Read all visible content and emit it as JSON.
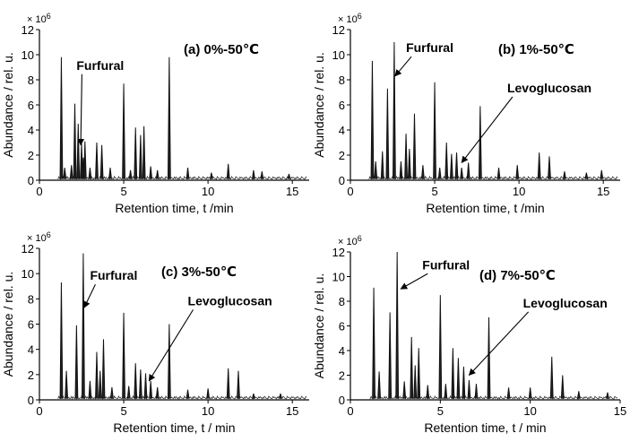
{
  "chart_data": [
    {
      "type": "line",
      "panel_label": "(a) 0%-50℃",
      "ylabel": "Abundance / rel. u.",
      "xlabel": "Retention time, t /min",
      "y_multiplier": "× 10",
      "y_multiplier_exp": "6",
      "xlim": [
        0,
        16
      ],
      "ylim": [
        0,
        12
      ],
      "x_ticks": [
        0,
        5,
        10,
        15
      ],
      "y_ticks": [
        0,
        2,
        4,
        6,
        8,
        10,
        12
      ],
      "peaks": [
        {
          "x": 1.3,
          "y": 9.8
        },
        {
          "x": 1.5,
          "y": 1.0
        },
        {
          "x": 1.9,
          "y": 1.2
        },
        {
          "x": 2.1,
          "y": 6.1
        },
        {
          "x": 2.3,
          "y": 4.5
        },
        {
          "x": 2.5,
          "y": 2.9
        },
        {
          "x": 2.6,
          "y": 1.8
        },
        {
          "x": 2.7,
          "y": 3.1
        },
        {
          "x": 3.0,
          "y": 1.0
        },
        {
          "x": 3.4,
          "y": 3.0
        },
        {
          "x": 3.7,
          "y": 2.8
        },
        {
          "x": 4.2,
          "y": 1.0
        },
        {
          "x": 5.0,
          "y": 7.7
        },
        {
          "x": 5.4,
          "y": 0.8
        },
        {
          "x": 5.7,
          "y": 4.2
        },
        {
          "x": 6.0,
          "y": 3.6
        },
        {
          "x": 6.2,
          "y": 4.3
        },
        {
          "x": 6.6,
          "y": 1.1
        },
        {
          "x": 7.0,
          "y": 0.8
        },
        {
          "x": 7.7,
          "y": 9.8
        },
        {
          "x": 8.8,
          "y": 1.0
        },
        {
          "x": 10.2,
          "y": 0.6
        },
        {
          "x": 11.2,
          "y": 1.3
        },
        {
          "x": 12.7,
          "y": 0.8
        },
        {
          "x": 13.2,
          "y": 0.7
        },
        {
          "x": 14.8,
          "y": 0.5
        }
      ],
      "annotations": [
        {
          "text": "Furfural",
          "x": 2.2,
          "y": 8.8,
          "arrow_to": [
            2.45,
            2.8
          ]
        }
      ]
    },
    {
      "type": "line",
      "panel_label": "(b) 1%-50℃",
      "ylabel": "Abundance / rel. u.",
      "xlabel": "Retention time, t /min",
      "y_multiplier": "× 10",
      "y_multiplier_exp": "6",
      "xlim": [
        0,
        16
      ],
      "ylim": [
        0,
        12
      ],
      "x_ticks": [
        0,
        5,
        10,
        15
      ],
      "y_ticks": [
        0,
        2,
        4,
        6,
        8,
        10,
        12
      ],
      "peaks": [
        {
          "x": 1.3,
          "y": 9.5
        },
        {
          "x": 1.5,
          "y": 1.5
        },
        {
          "x": 1.9,
          "y": 2.3
        },
        {
          "x": 2.2,
          "y": 7.3
        },
        {
          "x": 2.6,
          "y": 11.0
        },
        {
          "x": 3.0,
          "y": 1.5
        },
        {
          "x": 3.3,
          "y": 3.7
        },
        {
          "x": 3.5,
          "y": 2.5
        },
        {
          "x": 3.8,
          "y": 5.3
        },
        {
          "x": 4.3,
          "y": 1.2
        },
        {
          "x": 5.0,
          "y": 7.8
        },
        {
          "x": 5.3,
          "y": 1.0
        },
        {
          "x": 5.7,
          "y": 3.0
        },
        {
          "x": 6.0,
          "y": 2.1
        },
        {
          "x": 6.3,
          "y": 2.2
        },
        {
          "x": 6.6,
          "y": 1.0
        },
        {
          "x": 7.0,
          "y": 1.4
        },
        {
          "x": 7.7,
          "y": 5.9
        },
        {
          "x": 8.8,
          "y": 1.0
        },
        {
          "x": 9.9,
          "y": 1.2
        },
        {
          "x": 11.2,
          "y": 2.2
        },
        {
          "x": 11.8,
          "y": 1.9
        },
        {
          "x": 12.7,
          "y": 0.7
        },
        {
          "x": 14.0,
          "y": 0.6
        },
        {
          "x": 14.9,
          "y": 0.8
        }
      ],
      "annotations": [
        {
          "text": "Furfural",
          "x": 3.3,
          "y": 10.2,
          "arrow_to": [
            2.65,
            8.3
          ]
        },
        {
          "text": "Levoglucosan",
          "x": 9.3,
          "y": 7.0,
          "arrow_to": [
            6.6,
            1.4
          ]
        }
      ]
    },
    {
      "type": "line",
      "panel_label": "(c) 3%-50℃",
      "ylabel": "Abundance / rel. u.",
      "xlabel": "Retention time, t / min",
      "y_multiplier": "× 10",
      "y_multiplier_exp": "6",
      "xlim": [
        0,
        16
      ],
      "ylim": [
        0,
        12
      ],
      "x_ticks": [
        0,
        5,
        10,
        15
      ],
      "y_ticks": [
        0,
        2,
        4,
        6,
        8,
        10,
        12
      ],
      "peaks": [
        {
          "x": 1.3,
          "y": 9.3
        },
        {
          "x": 1.6,
          "y": 2.3
        },
        {
          "x": 2.2,
          "y": 5.9
        },
        {
          "x": 2.6,
          "y": 11.6
        },
        {
          "x": 3.0,
          "y": 1.5
        },
        {
          "x": 3.4,
          "y": 3.8
        },
        {
          "x": 3.6,
          "y": 2.3
        },
        {
          "x": 3.8,
          "y": 4.8
        },
        {
          "x": 4.3,
          "y": 1.0
        },
        {
          "x": 5.0,
          "y": 6.9
        },
        {
          "x": 5.3,
          "y": 1.1
        },
        {
          "x": 5.7,
          "y": 2.9
        },
        {
          "x": 6.0,
          "y": 2.4
        },
        {
          "x": 6.3,
          "y": 2.1
        },
        {
          "x": 6.6,
          "y": 1.5
        },
        {
          "x": 7.0,
          "y": 1.0
        },
        {
          "x": 7.7,
          "y": 6.0
        },
        {
          "x": 8.8,
          "y": 0.8
        },
        {
          "x": 10.0,
          "y": 0.9
        },
        {
          "x": 11.2,
          "y": 2.5
        },
        {
          "x": 11.8,
          "y": 2.3
        },
        {
          "x": 12.7,
          "y": 0.5
        },
        {
          "x": 14.3,
          "y": 0.5
        }
      ],
      "annotations": [
        {
          "text": "Furfural",
          "x": 3.0,
          "y": 9.5,
          "arrow_to": [
            2.65,
            7.3
          ]
        },
        {
          "text": "Levoglucosan",
          "x": 8.8,
          "y": 7.5,
          "arrow_to": [
            6.5,
            1.5
          ]
        }
      ]
    },
    {
      "type": "line",
      "panel_label": "(d) 7%-50℃",
      "ylabel": "Abundance / rel. u.",
      "xlabel": "Retention time, t / min",
      "y_multiplier": "× 10",
      "y_multiplier_exp": "6",
      "xlim": [
        0,
        15
      ],
      "ylim": [
        0,
        12
      ],
      "x_ticks": [
        0,
        5,
        10,
        15
      ],
      "y_ticks": [
        0,
        2,
        4,
        6,
        8,
        10,
        12
      ],
      "peaks": [
        {
          "x": 1.3,
          "y": 9.1
        },
        {
          "x": 1.6,
          "y": 2.3
        },
        {
          "x": 2.2,
          "y": 7.1
        },
        {
          "x": 2.6,
          "y": 12.0
        },
        {
          "x": 3.0,
          "y": 1.5
        },
        {
          "x": 3.4,
          "y": 5.1
        },
        {
          "x": 3.6,
          "y": 2.8
        },
        {
          "x": 3.8,
          "y": 4.2
        },
        {
          "x": 4.3,
          "y": 1.2
        },
        {
          "x": 5.0,
          "y": 8.5
        },
        {
          "x": 5.3,
          "y": 1.3
        },
        {
          "x": 5.7,
          "y": 4.2
        },
        {
          "x": 6.0,
          "y": 3.4
        },
        {
          "x": 6.3,
          "y": 2.7
        },
        {
          "x": 6.6,
          "y": 1.6
        },
        {
          "x": 7.0,
          "y": 1.3
        },
        {
          "x": 7.7,
          "y": 6.7
        },
        {
          "x": 8.8,
          "y": 1.0
        },
        {
          "x": 10.0,
          "y": 1.0
        },
        {
          "x": 11.2,
          "y": 3.5
        },
        {
          "x": 11.8,
          "y": 2.0
        },
        {
          "x": 12.7,
          "y": 0.7
        },
        {
          "x": 14.3,
          "y": 0.6
        }
      ],
      "annotations": [
        {
          "text": "Furfural",
          "x": 4.0,
          "y": 10.6,
          "arrow_to": [
            2.8,
            9.0
          ]
        },
        {
          "text": "Levoglucosan",
          "x": 9.6,
          "y": 7.5,
          "arrow_to": [
            6.6,
            2.0
          ]
        }
      ]
    }
  ]
}
